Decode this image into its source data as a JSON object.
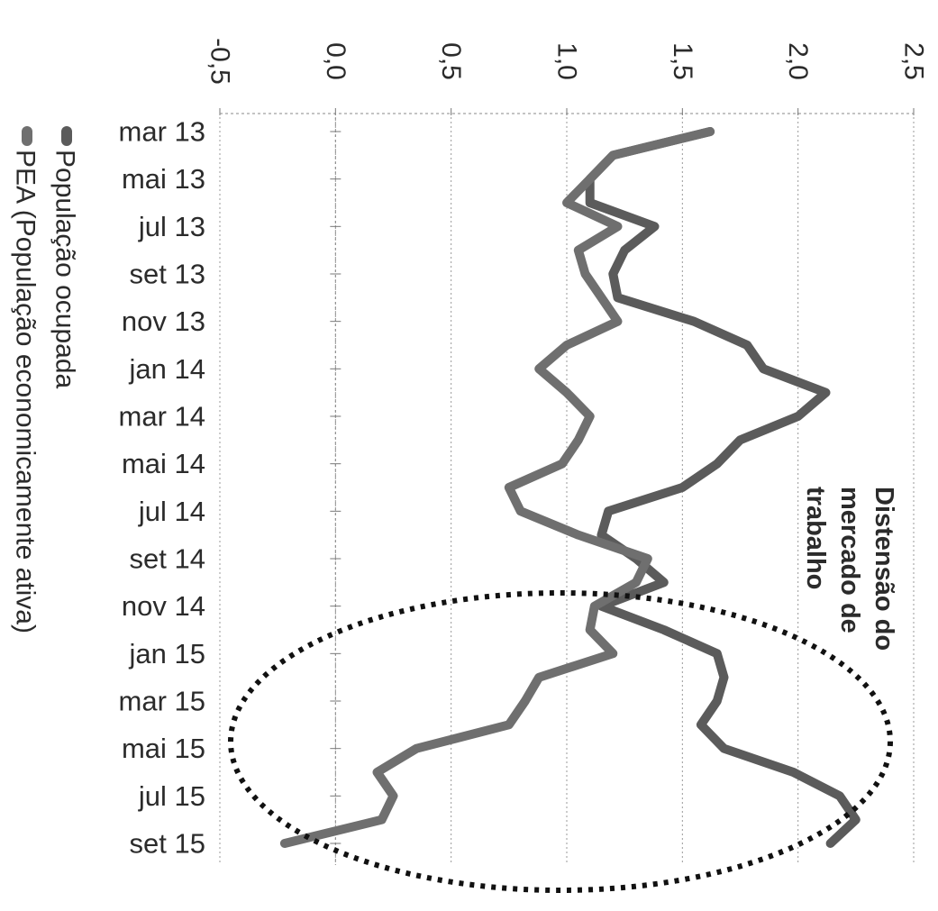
{
  "chart_data": {
    "type": "line",
    "orientation": "rotated-90-clockwise",
    "title": "",
    "xlabel": "",
    "ylabel": "",
    "ylim": [
      -0.5,
      2.5
    ],
    "y_ticks": [
      "-0,5",
      "0,0",
      "0,5",
      "1,0",
      "1,5",
      "2,0",
      "2,5"
    ],
    "y_tick_values": [
      -0.5,
      0.0,
      0.5,
      1.0,
      1.5,
      2.0,
      2.5
    ],
    "grid": true,
    "x_labels": [
      "mar 13",
      "mai 13",
      "jul 13",
      "set 13",
      "nov 13",
      "jan 14",
      "mar 14",
      "mai 14",
      "jul 14",
      "set 14",
      "nov 14",
      "jan 15",
      "mar 15",
      "mai 15",
      "jul 15",
      "set 15"
    ],
    "x": [
      "mar 13",
      "abr 13",
      "mai 13",
      "jun 13",
      "jul 13",
      "ago 13",
      "set 13",
      "out 13",
      "nov 13",
      "dez 13",
      "jan 14",
      "fev 14",
      "mar 14",
      "abr 14",
      "mai 14",
      "jun 14",
      "jul 14",
      "ago 14",
      "set 14",
      "out 14",
      "nov 14",
      "dez 14",
      "jan 15",
      "fev 15",
      "mar 15",
      "abr 15",
      "mai 15",
      "jun 15",
      "jul 15",
      "ago 15",
      "set 15"
    ],
    "series": [
      {
        "name": "População ocupada",
        "color": "#5b5b5b",
        "values": [
          1.62,
          1.2,
          1.1,
          1.1,
          1.38,
          1.25,
          1.2,
          1.22,
          1.55,
          1.78,
          1.85,
          2.12,
          2.0,
          1.75,
          1.65,
          1.5,
          1.18,
          1.15,
          1.3,
          1.42,
          1.15,
          1.42,
          1.65,
          1.68,
          1.65,
          1.58,
          1.68,
          1.98,
          2.18,
          2.25,
          2.14
        ]
      },
      {
        "name": "PEA (População economicamente ativa)",
        "color": "#6f6f6f",
        "values": [
          1.62,
          1.2,
          1.1,
          1.0,
          1.22,
          1.05,
          1.08,
          1.15,
          1.22,
          1.0,
          0.88,
          1.0,
          1.1,
          1.05,
          0.98,
          0.75,
          0.8,
          1.05,
          1.35,
          1.3,
          1.12,
          1.1,
          1.2,
          0.88,
          0.82,
          0.75,
          0.35,
          0.18,
          0.25,
          0.2,
          -0.22
        ]
      }
    ],
    "legend_position": "bottom",
    "annotation": {
      "text_lines": [
        "Distensão do",
        "mercado de",
        "trabalho"
      ],
      "highlight": "dotted-ellipse"
    }
  }
}
